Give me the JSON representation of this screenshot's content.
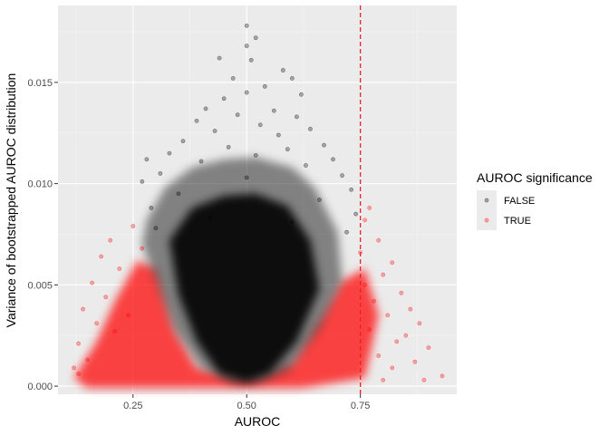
{
  "chart_data": {
    "type": "scatter",
    "title": "",
    "xlabel": "AUROC",
    "ylabel": "Variance of bootstrapped AUROC distribution",
    "xlim": [
      0.085,
      0.962
    ],
    "ylim": [
      -0.0004,
      0.0188
    ],
    "x_ticks": [
      0.25,
      0.5,
      0.75
    ],
    "x_tick_labels": [
      "0.25",
      "0.50",
      "0.75"
    ],
    "y_ticks": [
      0.0,
      0.005,
      0.01,
      0.015
    ],
    "y_tick_labels": [
      "0.000",
      "0.005",
      "0.010",
      "0.015"
    ],
    "grid": true,
    "vline": {
      "x": 0.75,
      "color": "#e8222a",
      "style": "dashed"
    },
    "legend": {
      "title": "AUROC significance",
      "position": "right"
    },
    "series": [
      {
        "name": "FALSE",
        "color": "#000000",
        "alpha": 0.3,
        "points": [
          [
            0.5,
            0.0178
          ],
          [
            0.52,
            0.0172
          ],
          [
            0.5,
            0.0168
          ],
          [
            0.51,
            0.0161
          ],
          [
            0.44,
            0.0162
          ],
          [
            0.58,
            0.0156
          ],
          [
            0.47,
            0.0152
          ],
          [
            0.6,
            0.0152
          ],
          [
            0.54,
            0.0148
          ],
          [
            0.5,
            0.0145
          ],
          [
            0.62,
            0.0144
          ],
          [
            0.45,
            0.0142
          ],
          [
            0.41,
            0.0137
          ],
          [
            0.56,
            0.0136
          ],
          [
            0.48,
            0.0134
          ],
          [
            0.61,
            0.0133
          ],
          [
            0.39,
            0.0131
          ],
          [
            0.53,
            0.0129
          ],
          [
            0.64,
            0.0127
          ],
          [
            0.43,
            0.0126
          ],
          [
            0.57,
            0.0124
          ],
          [
            0.36,
            0.0121
          ],
          [
            0.67,
            0.0119
          ],
          [
            0.46,
            0.0118
          ],
          [
            0.59,
            0.0117
          ],
          [
            0.33,
            0.0115
          ],
          [
            0.52,
            0.0114
          ],
          [
            0.69,
            0.0112
          ],
          [
            0.28,
            0.0112
          ],
          [
            0.4,
            0.0111
          ],
          [
            0.63,
            0.0109
          ],
          [
            0.31,
            0.0105
          ],
          [
            0.71,
            0.0104
          ],
          [
            0.5,
            0.0103
          ],
          [
            0.27,
            0.0101
          ],
          [
            0.73,
            0.0097
          ],
          [
            0.35,
            0.0095
          ],
          [
            0.66,
            0.0092
          ],
          [
            0.29,
            0.0088
          ],
          [
            0.74,
            0.0085
          ],
          [
            0.42,
            0.0083
          ],
          [
            0.6,
            0.0081
          ],
          [
            0.3,
            0.0078
          ],
          [
            0.72,
            0.0076
          ]
        ]
      },
      {
        "name": "TRUE",
        "color": "#ff0000",
        "alpha": 0.3,
        "points": [
          [
            0.77,
            0.0088
          ],
          [
            0.76,
            0.0082
          ],
          [
            0.79,
            0.0072
          ],
          [
            0.75,
            0.0066
          ],
          [
            0.82,
            0.0061
          ],
          [
            0.8,
            0.0055
          ],
          [
            0.76,
            0.005
          ],
          [
            0.84,
            0.0046
          ],
          [
            0.78,
            0.0042
          ],
          [
            0.86,
            0.0038
          ],
          [
            0.81,
            0.0035
          ],
          [
            0.88,
            0.0031
          ],
          [
            0.77,
            0.0028
          ],
          [
            0.85,
            0.0025
          ],
          [
            0.83,
            0.0022
          ],
          [
            0.9,
            0.0019
          ],
          [
            0.79,
            0.0015
          ],
          [
            0.87,
            0.0012
          ],
          [
            0.82,
            0.0009
          ],
          [
            0.93,
            0.0005
          ],
          [
            0.89,
            0.0003
          ],
          [
            0.8,
            0.0003
          ],
          [
            0.2,
            0.0072
          ],
          [
            0.18,
            0.0064
          ],
          [
            0.25,
            0.0079
          ],
          [
            0.22,
            0.0058
          ],
          [
            0.16,
            0.0051
          ],
          [
            0.19,
            0.0044
          ],
          [
            0.14,
            0.0038
          ],
          [
            0.17,
            0.0031
          ],
          [
            0.13,
            0.0021
          ],
          [
            0.15,
            0.0013
          ],
          [
            0.12,
            0.0009
          ],
          [
            0.21,
            0.0027
          ],
          [
            0.24,
            0.0035
          ],
          [
            0.27,
            0.0068
          ],
          [
            0.13,
            0.0006
          ]
        ]
      }
    ]
  }
}
